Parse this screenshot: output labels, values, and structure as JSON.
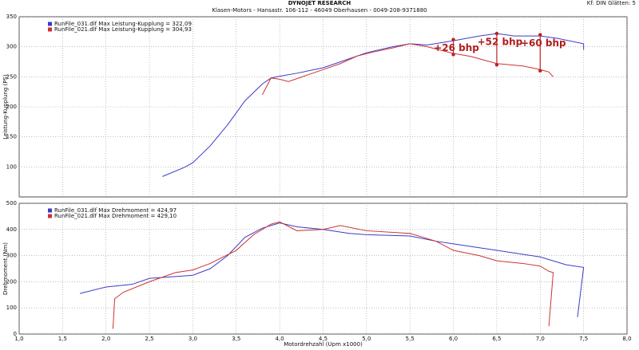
{
  "header": {
    "title": "DYNOJET RESEARCH",
    "subtitle": "Klasen-Motors - Hansastr. 106-112 - 46049 Oberhausen - 0049-208-9371880",
    "settings": "Kf: DIN  Glätten: 5"
  },
  "chart_data": [
    {
      "type": "line",
      "ylabel": "Leistung-Kupplung (PS)",
      "xlim": [
        1,
        8
      ],
      "ylim": [
        50,
        350
      ],
      "yticks": [
        100,
        150,
        200,
        250,
        300,
        350
      ],
      "grid": true,
      "series": [
        {
          "name": "RunFile_031.dlf Max Leistung-Kupplung = 322,09",
          "color": "#3b3bc8",
          "x": [
            2.65,
            2.9,
            3.0,
            3.2,
            3.4,
            3.5,
            3.6,
            3.8,
            3.9,
            4.0,
            4.2,
            4.5,
            4.8,
            5.0,
            5.3,
            5.5,
            5.7,
            6.0,
            6.3,
            6.5,
            6.7,
            7.0,
            7.2,
            7.5,
            7.5
          ],
          "values": [
            84,
            99,
            107,
            135,
            170,
            190,
            210,
            238,
            248,
            251,
            256,
            265,
            280,
            290,
            300,
            305,
            303,
            310,
            318,
            322,
            318,
            318,
            314,
            305,
            295
          ]
        },
        {
          "name": "RunFile_021.dlf Max Leistung-Kupplung = 304,93",
          "color": "#cc3333",
          "x": [
            3.8,
            3.9,
            4.0,
            4.1,
            4.3,
            4.5,
            4.7,
            4.9,
            5.1,
            5.3,
            5.5,
            5.7,
            6.0,
            6.2,
            6.5,
            6.8,
            7.0,
            7.1,
            7.15
          ],
          "values": [
            220,
            248,
            246,
            242,
            252,
            262,
            272,
            285,
            292,
            298,
            305,
            300,
            289,
            284,
            272,
            268,
            262,
            258,
            250
          ]
        }
      ],
      "annotations": [
        {
          "text": "+26 bhp",
          "x": 6.0,
          "y": [
            312,
            287
          ]
        },
        {
          "text": "+52 bhp",
          "x": 6.5,
          "y": [
            322,
            270
          ]
        },
        {
          "text": "+60 bhp",
          "x": 7.0,
          "y": [
            320,
            260
          ]
        }
      ]
    },
    {
      "type": "line",
      "ylabel": "Drehmoment (Nm)",
      "xlabel": "Motordrehzahl (Upm x1000)",
      "xlim": [
        1,
        8
      ],
      "ylim": [
        0,
        500
      ],
      "yticks": [
        0,
        100,
        200,
        300,
        400,
        500
      ],
      "grid": true,
      "xticks": [
        {
          "value": 1,
          "label": "1,0"
        },
        {
          "value": 1.5,
          "label": "1,5"
        },
        {
          "value": 2,
          "label": "2,0"
        },
        {
          "value": 2.5,
          "label": "2,5"
        },
        {
          "value": 3,
          "label": "3,0"
        },
        {
          "value": 3.5,
          "label": "3,5"
        },
        {
          "value": 4,
          "label": "4,0"
        },
        {
          "value": 4.5,
          "label": "4,5"
        },
        {
          "value": 5,
          "label": "5,0"
        },
        {
          "value": 5.5,
          "label": "5,5"
        },
        {
          "value": 6,
          "label": "6,0"
        },
        {
          "value": 6.5,
          "label": "6,5"
        },
        {
          "value": 7,
          "label": "7,0"
        },
        {
          "value": 7.5,
          "label": "7,5"
        },
        {
          "value": 8,
          "label": "8,0"
        }
      ],
      "series": [
        {
          "name": "RunFile_031.dlf Max Drehmoment = 424,97",
          "color": "#3b3bc8",
          "x": [
            1.7,
            2.0,
            2.3,
            2.5,
            2.8,
            3.0,
            3.2,
            3.4,
            3.6,
            3.8,
            4.0,
            4.2,
            4.5,
            4.8,
            5.0,
            5.5,
            5.8,
            6.0,
            6.5,
            7.0,
            7.3,
            7.5,
            7.43
          ],
          "values": [
            155,
            180,
            190,
            213,
            220,
            225,
            250,
            300,
            370,
            405,
            425,
            410,
            400,
            385,
            380,
            375,
            355,
            345,
            320,
            295,
            265,
            255,
            65
          ]
        },
        {
          "name": "RunFile_021.dlf Max Drehmoment = 429,10",
          "color": "#cc3333",
          "x": [
            2.08,
            2.1,
            2.2,
            2.5,
            2.8,
            3.0,
            3.2,
            3.5,
            3.7,
            3.9,
            4.0,
            4.2,
            4.5,
            4.7,
            5.0,
            5.5,
            5.8,
            6.0,
            6.3,
            6.5,
            6.8,
            7.0,
            7.1,
            7.15,
            7.1
          ],
          "values": [
            20,
            135,
            160,
            200,
            235,
            245,
            270,
            320,
            380,
            420,
            429,
            395,
            400,
            415,
            395,
            385,
            355,
            320,
            300,
            280,
            270,
            260,
            240,
            235,
            30
          ]
        }
      ]
    }
  ]
}
